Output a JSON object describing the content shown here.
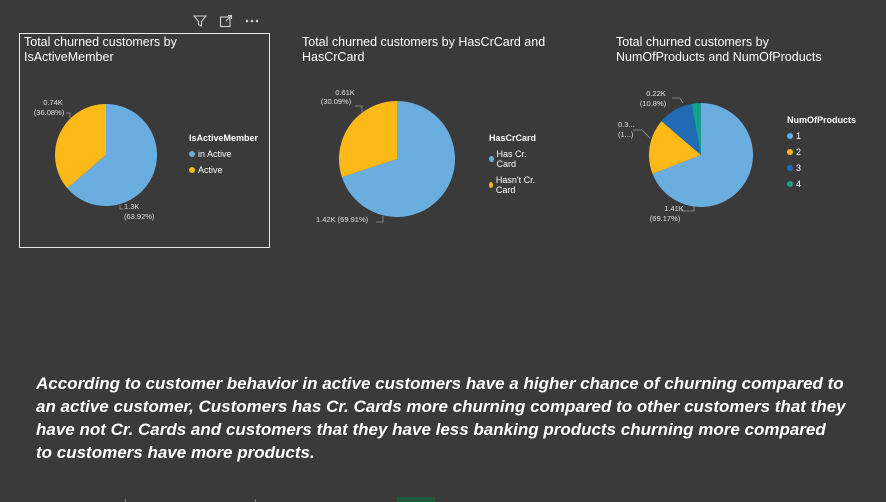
{
  "header_icons": [
    "filter-icon",
    "focus-mode-icon",
    "more-options-icon"
  ],
  "colors": {
    "blue": "#6aaee0",
    "yellow": "#fdb918",
    "darkblue": "#1f6cb5",
    "teal": "#14a08a",
    "leader": "#9a9a9a"
  },
  "visuals": [
    {
      "title": "Total churned customers by IsActiveMember",
      "legend_title": "IsActiveMember",
      "legend": [
        {
          "label": "in Active",
          "color": "#6aaee0"
        },
        {
          "label": "Active",
          "color": "#fdb918"
        }
      ],
      "labels": [
        {
          "value": "1.3K",
          "pct": "(63.92%)"
        },
        {
          "value": "0.74K",
          "pct": "(36.08%)"
        }
      ]
    },
    {
      "title": "Total churned customers by HasCrCard and HasCrCard",
      "legend_title": "HasCrCard",
      "legend": [
        {
          "label": "Has Cr. Card",
          "color": "#6aaee0"
        },
        {
          "label": "Hasn't Cr. Card",
          "color": "#fdb918"
        }
      ],
      "labels": [
        {
          "value": "1.42K (69.91%)"
        },
        {
          "value": "0.61K",
          "pct": "(30.09%)"
        }
      ]
    },
    {
      "title": "Total churned customers by NumOfProducts and NumOfProducts",
      "legend_title": "NumOfProducts",
      "legend": [
        {
          "label": "1",
          "color": "#6aaee0"
        },
        {
          "label": "2",
          "color": "#fdb918"
        },
        {
          "label": "3",
          "color": "#1f6cb5"
        },
        {
          "label": "4",
          "color": "#14a08a"
        }
      ],
      "labels": [
        {
          "value": "1.41K",
          "pct": "(69.17%)"
        },
        {
          "value": "0.3...",
          "pct": "(1...)"
        },
        {
          "value": "0.22K",
          "pct": "(10.8%)"
        }
      ]
    }
  ],
  "chart_data": [
    {
      "type": "pie",
      "title": "Total churned customers by IsActiveMember",
      "categories": [
        "in Active",
        "Active"
      ],
      "values": [
        1.3,
        0.74
      ],
      "percents": [
        63.92,
        36.08
      ],
      "colors": [
        "#6aaee0",
        "#fdb918"
      ]
    },
    {
      "type": "pie",
      "title": "Total churned customers by HasCrCard and HasCrCard",
      "categories": [
        "Has Cr. Card",
        "Hasn't Cr. Card"
      ],
      "values": [
        1.42,
        0.61
      ],
      "percents": [
        69.91,
        30.09
      ],
      "colors": [
        "#6aaee0",
        "#fdb918"
      ]
    },
    {
      "type": "pie",
      "title": "Total churned customers by NumOfProducts and NumOfProducts",
      "categories": [
        "1",
        "2",
        "3",
        "4"
      ],
      "values": [
        1.41,
        0.35,
        0.22,
        0.06
      ],
      "percents": [
        69.17,
        17.2,
        10.8,
        2.9
      ],
      "colors": [
        "#6aaee0",
        "#fdb918",
        "#1f6cb5",
        "#14a08a"
      ]
    }
  ],
  "caption": "According to customer behavior  in active customers have a higher chance of churning compared to an active customer, Customers has Cr. Cards more churning compared to other customers that they have not  Cr. Cards  and customers that they have less banking products churning more compared to customers have more products."
}
